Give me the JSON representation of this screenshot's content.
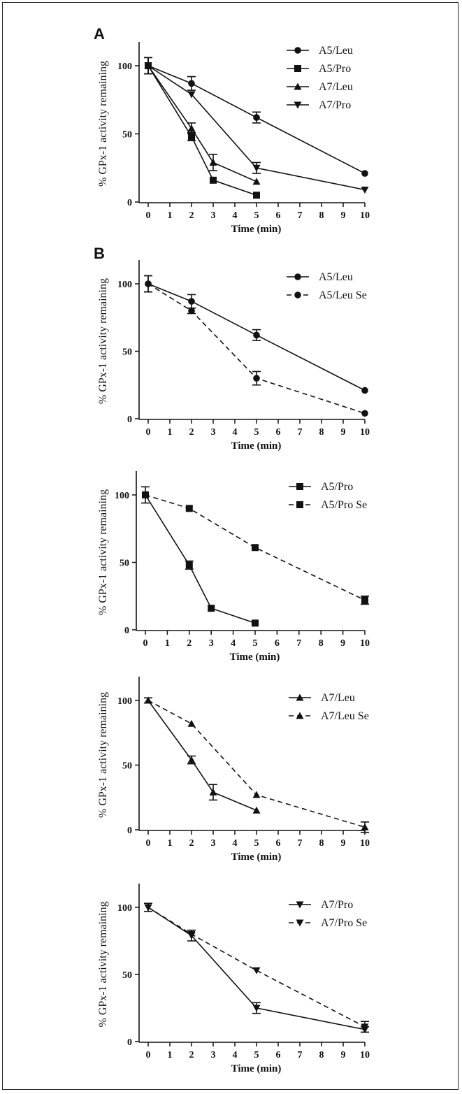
{
  "panel_letters": [
    "A",
    "B"
  ],
  "chart_data": [
    {
      "type": "line",
      "panel": "A",
      "xlabel": "Time (min)",
      "ylabel": "% GPx-1 activity remaining",
      "xlim": [
        0,
        10
      ],
      "ylim": [
        0,
        100
      ],
      "xticks": [
        0,
        1,
        2,
        3,
        4,
        5,
        6,
        7,
        8,
        9,
        10
      ],
      "yticks": [
        0,
        50,
        100
      ],
      "legend_position": "top-right",
      "series": [
        {
          "name": "A5/Leu",
          "marker": "circle",
          "dash": "solid",
          "x": [
            0,
            2,
            5,
            10
          ],
          "y": [
            100,
            87,
            62,
            21
          ],
          "err": [
            6,
            5,
            4,
            0
          ]
        },
        {
          "name": "A5/Pro",
          "marker": "square",
          "dash": "solid",
          "x": [
            0,
            2,
            3,
            5
          ],
          "y": [
            100,
            48,
            16,
            5
          ],
          "err": [
            6,
            3,
            0,
            0
          ]
        },
        {
          "name": "A7/Leu",
          "marker": "triangle-up",
          "dash": "solid",
          "x": [
            0,
            2,
            3,
            5
          ],
          "y": [
            100,
            54,
            29,
            15
          ],
          "err": [
            6,
            4,
            6,
            0
          ]
        },
        {
          "name": "A7/Pro",
          "marker": "triangle-down",
          "dash": "solid",
          "x": [
            0,
            2,
            5,
            10
          ],
          "y": [
            100,
            79,
            25,
            9
          ],
          "err": [
            6,
            0,
            4,
            0
          ]
        }
      ]
    },
    {
      "type": "line",
      "panel": "B",
      "xlabel": "Time (min)",
      "ylabel": "% GPx-1 activity remaining",
      "xlim": [
        0,
        10
      ],
      "ylim": [
        0,
        100
      ],
      "xticks": [
        0,
        1,
        2,
        3,
        4,
        5,
        6,
        7,
        8,
        9,
        10
      ],
      "yticks": [
        0,
        50,
        100
      ],
      "legend_position": "top-right",
      "series": [
        {
          "name": "A5/Leu",
          "marker": "circle",
          "dash": "solid",
          "x": [
            0,
            2,
            5,
            10
          ],
          "y": [
            100,
            87,
            62,
            21
          ],
          "err": [
            6,
            5,
            4,
            0
          ]
        },
        {
          "name": "A5/Leu Se",
          "marker": "circle",
          "dash": "dashed",
          "x": [
            0,
            2,
            5,
            10
          ],
          "y": [
            100,
            80,
            30,
            4
          ],
          "err": [
            6,
            2,
            5,
            0
          ]
        }
      ]
    },
    {
      "type": "line",
      "panel": "",
      "xlabel": "Time (min)",
      "ylabel": "% GPx-1 activity remaining",
      "xlim": [
        0,
        10
      ],
      "ylim": [
        0,
        100
      ],
      "xticks": [
        0,
        1,
        2,
        3,
        4,
        5,
        6,
        7,
        8,
        9,
        10
      ],
      "yticks": [
        0,
        50,
        100
      ],
      "legend_position": "top-right",
      "series": [
        {
          "name": "A5/Pro",
          "marker": "square",
          "dash": "solid",
          "x": [
            0,
            2,
            3,
            5
          ],
          "y": [
            100,
            48,
            16,
            5
          ],
          "err": [
            6,
            3,
            0,
            0
          ]
        },
        {
          "name": "A5/Pro Se",
          "marker": "square",
          "dash": "dashed",
          "x": [
            0,
            2,
            5,
            10
          ],
          "y": [
            100,
            90,
            61,
            22
          ],
          "err": [
            0,
            0,
            0,
            3
          ]
        }
      ]
    },
    {
      "type": "line",
      "panel": "",
      "xlabel": "Time (min)",
      "ylabel": "% GPx-1 activity remaining",
      "xlim": [
        0,
        10
      ],
      "ylim": [
        0,
        100
      ],
      "xticks": [
        0,
        1,
        2,
        3,
        4,
        5,
        6,
        7,
        8,
        9,
        10
      ],
      "yticks": [
        0,
        50,
        100
      ],
      "legend_position": "top-right",
      "series": [
        {
          "name": "A7/Leu",
          "marker": "triangle-up",
          "dash": "solid",
          "x": [
            0,
            2,
            3,
            5
          ],
          "y": [
            100,
            54,
            29,
            15
          ],
          "err": [
            2,
            3,
            6,
            0
          ]
        },
        {
          "name": "A7/Leu Se",
          "marker": "triangle-up",
          "dash": "dashed",
          "x": [
            0,
            2,
            5,
            10
          ],
          "y": [
            100,
            82,
            27,
            2
          ],
          "err": [
            2,
            0,
            0,
            4
          ]
        }
      ]
    },
    {
      "type": "line",
      "panel": "",
      "xlabel": "Time (min)",
      "ylabel": "% GPx-1 activity remaining",
      "xlim": [
        0,
        10
      ],
      "ylim": [
        0,
        100
      ],
      "xticks": [
        0,
        1,
        2,
        3,
        4,
        5,
        6,
        7,
        8,
        9,
        10
      ],
      "yticks": [
        0,
        50,
        100
      ],
      "legend_position": "top-right",
      "series": [
        {
          "name": "A7/Pro",
          "marker": "triangle-down",
          "dash": "solid",
          "x": [
            0,
            2,
            5,
            10
          ],
          "y": [
            100,
            79,
            25,
            9
          ],
          "err": [
            3,
            4,
            4,
            2
          ]
        },
        {
          "name": "A7/Pro Se",
          "marker": "triangle-down",
          "dash": "dashed",
          "x": [
            0,
            2,
            5,
            10
          ],
          "y": [
            100,
            80,
            53,
            11
          ],
          "err": [
            3,
            0,
            0,
            4
          ]
        }
      ]
    }
  ]
}
